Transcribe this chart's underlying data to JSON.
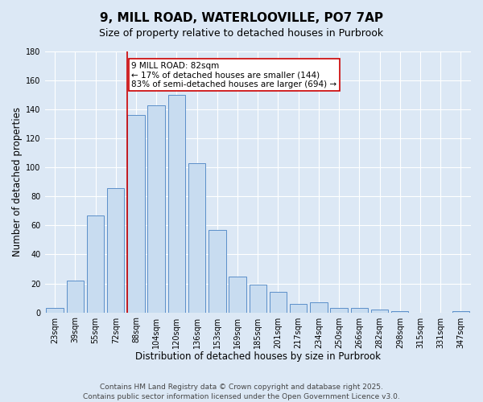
{
  "title": "9, MILL ROAD, WATERLOOVILLE, PO7 7AP",
  "subtitle": "Size of property relative to detached houses in Purbrook",
  "xlabel": "Distribution of detached houses by size in Purbrook",
  "ylabel": "Number of detached properties",
  "categories": [
    "23sqm",
    "39sqm",
    "55sqm",
    "72sqm",
    "88sqm",
    "104sqm",
    "120sqm",
    "136sqm",
    "153sqm",
    "169sqm",
    "185sqm",
    "201sqm",
    "217sqm",
    "234sqm",
    "250sqm",
    "266sqm",
    "282sqm",
    "298sqm",
    "315sqm",
    "331sqm",
    "347sqm"
  ],
  "values": [
    3,
    22,
    67,
    86,
    136,
    143,
    150,
    103,
    57,
    25,
    19,
    14,
    6,
    7,
    3,
    3,
    2,
    1,
    0,
    0,
    1
  ],
  "bar_color": "#c8dcf0",
  "bar_edge_color": "#5b8fc9",
  "vline_color": "#cc0000",
  "annotation_box_color": "#ffffff",
  "annotation_box_edge_color": "#cc0000",
  "property_line_label": "9 MILL ROAD: 82sqm",
  "annotation_line1": "← 17% of detached houses are smaller (144)",
  "annotation_line2": "83% of semi-detached houses are larger (694) →",
  "ylim": [
    0,
    180
  ],
  "yticks": [
    0,
    20,
    40,
    60,
    80,
    100,
    120,
    140,
    160,
    180
  ],
  "background_color": "#dce8f5",
  "plot_background_color": "#dce8f5",
  "footer_line1": "Contains HM Land Registry data © Crown copyright and database right 2025.",
  "footer_line2": "Contains public sector information licensed under the Open Government Licence v3.0.",
  "title_fontsize": 11,
  "subtitle_fontsize": 9,
  "axis_label_fontsize": 8.5,
  "tick_fontsize": 7,
  "annotation_fontsize": 7.5,
  "footer_fontsize": 6.5
}
